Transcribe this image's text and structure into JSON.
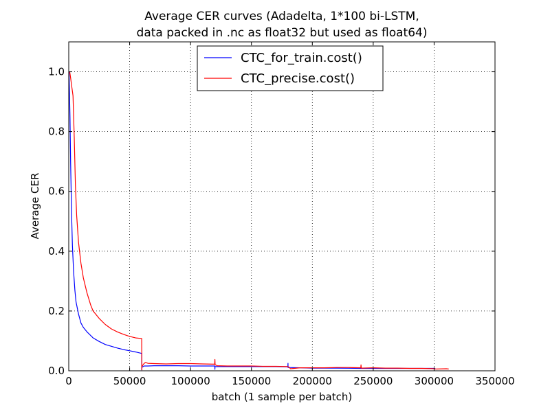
{
  "chart_data": {
    "type": "line",
    "title_line1": "Average CER curves (Adadelta, 1*100 bi-LSTM,",
    "title_line2": "data packed in .nc as float32 but used as float64)",
    "xlabel": "batch (1 sample per batch)",
    "ylabel": "Average CER",
    "xlim": [
      0,
      350000
    ],
    "ylim": [
      0,
      1.1
    ],
    "xticks": [
      0,
      50000,
      100000,
      150000,
      200000,
      250000,
      300000,
      350000
    ],
    "yticks": [
      0.0,
      0.2,
      0.4,
      0.6,
      0.8,
      1.0
    ],
    "grid": true,
    "legend_position": "top-center",
    "series": [
      {
        "name": "CTC_for_train.cost()",
        "color": "#0000ff",
        "x": [
          200,
          500,
          1000,
          1500,
          2000,
          2500,
          3000,
          4000,
          5000,
          6000,
          8000,
          10000,
          12000,
          15000,
          20000,
          25000,
          30000,
          35000,
          40000,
          45000,
          50000,
          55000,
          59900,
          60000,
          60100,
          61000,
          62000,
          65000,
          70000,
          80000,
          90000,
          100000,
          110000,
          119900,
          120000,
          120100,
          130000,
          140000,
          150000,
          160000,
          170000,
          179900,
          180000,
          180100,
          190000,
          200000,
          220000,
          240000,
          260000,
          280000,
          300000,
          301000
        ],
        "y": [
          1.0,
          0.95,
          0.85,
          0.7,
          0.6,
          0.5,
          0.42,
          0.33,
          0.27,
          0.23,
          0.19,
          0.16,
          0.145,
          0.13,
          0.11,
          0.098,
          0.088,
          0.082,
          0.076,
          0.071,
          0.067,
          0.063,
          0.058,
          0.003,
          0.012,
          0.014,
          0.016,
          0.016,
          0.017,
          0.017,
          0.017,
          0.016,
          0.016,
          0.016,
          0.005,
          0.014,
          0.014,
          0.014,
          0.014,
          0.014,
          0.014,
          0.013,
          0.025,
          0.011,
          0.01,
          0.009,
          0.009,
          0.008,
          0.008,
          0.008,
          0.008,
          0.007
        ]
      },
      {
        "name": "CTC_precise.cost()",
        "color": "#ff0000",
        "x": [
          200,
          800,
          1500,
          2500,
          3500,
          4500,
          5500,
          6500,
          8000,
          10000,
          12000,
          15000,
          18000,
          20000,
          25000,
          30000,
          35000,
          40000,
          45000,
          50000,
          55000,
          59900,
          60000,
          60100,
          61000,
          62000,
          63000,
          65000,
          70000,
          80000,
          90000,
          100000,
          110000,
          119800,
          120000,
          120200,
          122000,
          130000,
          140000,
          150000,
          160000,
          170000,
          180000,
          181000,
          182000,
          185000,
          190000,
          200000,
          210000,
          220000,
          230000,
          239800,
          240000,
          240200,
          250000,
          260000,
          270000,
          280000,
          290000,
          300000,
          301000,
          310000,
          312000
        ],
        "y": [
          1.0,
          1.0,
          0.98,
          0.95,
          0.92,
          0.78,
          0.62,
          0.52,
          0.43,
          0.36,
          0.31,
          0.26,
          0.22,
          0.2,
          0.175,
          0.155,
          0.14,
          0.13,
          0.122,
          0.115,
          0.11,
          0.108,
          0.003,
          0.015,
          0.02,
          0.025,
          0.028,
          0.025,
          0.024,
          0.023,
          0.024,
          0.024,
          0.023,
          0.022,
          0.038,
          0.02,
          0.017,
          0.016,
          0.016,
          0.016,
          0.015,
          0.015,
          0.014,
          0.012,
          0.007,
          0.008,
          0.01,
          0.01,
          0.01,
          0.011,
          0.011,
          0.01,
          0.02,
          0.009,
          0.01,
          0.009,
          0.009,
          0.008,
          0.008,
          0.007,
          0.006,
          0.007,
          0.006
        ]
      }
    ]
  }
}
